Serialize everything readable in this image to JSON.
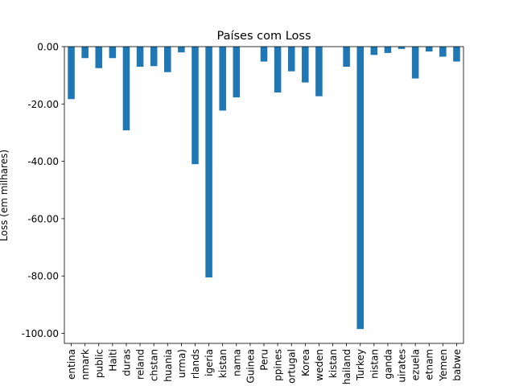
{
  "chart_data": {
    "type": "bar",
    "title": "Países com Loss",
    "xlabel": "",
    "ylabel": "Loss (em milhares)",
    "ylim": [
      -103.5,
      0
    ],
    "yticks": [
      0,
      -20,
      -40,
      -60,
      -80,
      -100
    ],
    "ytick_labels": [
      "0.00",
      "-20.00",
      "-40.00",
      "-60.00",
      "-80.00",
      "-100.00"
    ],
    "grid": false,
    "bar_color": "#1f77b4",
    "categories": [
      "entina",
      "nmark",
      "public",
      "Haiti",
      "duras",
      "reland",
      "chstan",
      "huania",
      "urma)",
      "rlands",
      "igeria",
      "kistan",
      "nama",
      "Guinea",
      "Peru",
      "ppines",
      "ortugal",
      "Korea",
      "weden",
      "kistan",
      "hailand",
      "Turkey",
      "nistan",
      "ganda",
      "uirates",
      "ezuela",
      "etnam",
      "Yemen",
      "babwe"
    ],
    "values": [
      -18.3,
      -4.0,
      -7.5,
      -4.0,
      -29.2,
      -7.0,
      -6.8,
      -8.9,
      -2.0,
      -41.0,
      -80.5,
      -22.3,
      -17.7,
      0.0,
      -5.2,
      -16.0,
      -8.6,
      -12.5,
      -17.3,
      0.0,
      -7.0,
      -98.5,
      -2.9,
      -2.2,
      -0.8,
      -11.1,
      -1.7,
      -3.5,
      -5.2
    ]
  }
}
